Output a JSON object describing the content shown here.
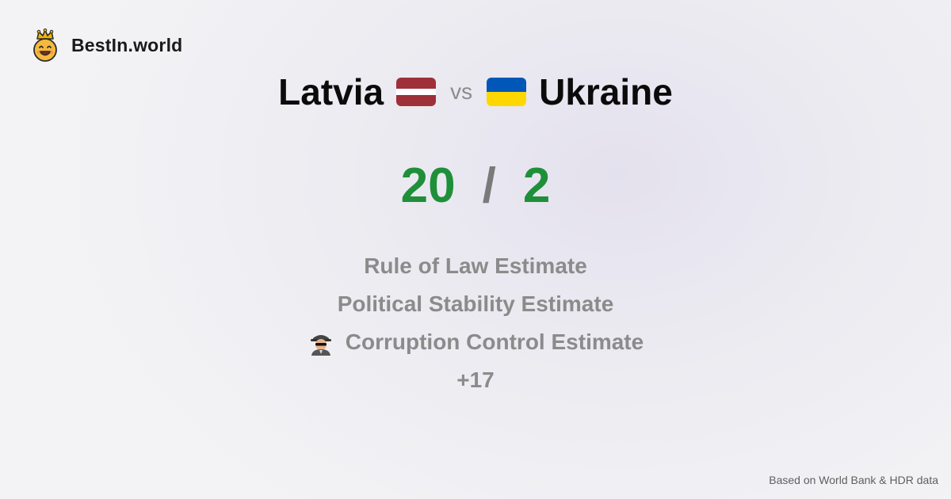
{
  "brand": {
    "name": "BestIn.world",
    "logo_icon": "crowned-smiley-icon"
  },
  "comparison": {
    "left": {
      "name": "Latvia",
      "flag_colors": [
        "#9e3039",
        "#ffffff",
        "#9e3039"
      ]
    },
    "vs_label": "vs",
    "right": {
      "name": "Ukraine",
      "flag_colors": [
        "#0057b7",
        "#ffd700"
      ]
    }
  },
  "score": {
    "left": "20",
    "separator": "/",
    "right": "2",
    "color": "#1f8f3a"
  },
  "metrics": [
    {
      "label": "Rule of Law Estimate"
    },
    {
      "label": "Political Stability Estimate"
    },
    {
      "label": "Corruption Control Estimate",
      "icon": "detective-icon"
    },
    {
      "label": "+17"
    }
  ],
  "footer": {
    "source": "Based on World Bank & HDR data"
  }
}
